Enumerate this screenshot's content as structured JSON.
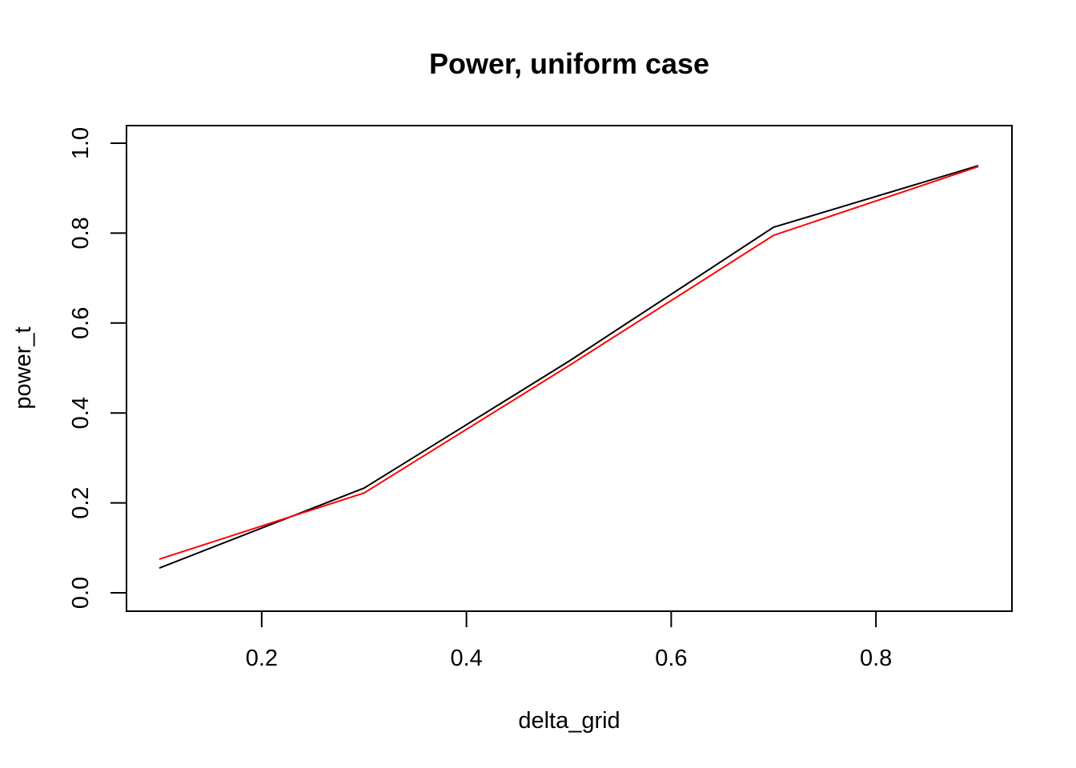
{
  "chart_data": {
    "type": "line",
    "title": "Power, uniform case",
    "xlabel": "delta_grid",
    "ylabel": "power_t",
    "x": [
      0.1,
      0.3,
      0.5,
      0.7,
      0.9
    ],
    "xlim": [
      0.1,
      0.9
    ],
    "ylim": [
      0.055,
      0.95
    ],
    "xticks": [
      0.2,
      0.4,
      0.6,
      0.8
    ],
    "xtick_labels": [
      "0.2",
      "0.4",
      "0.6",
      "0.8"
    ],
    "yticks": [
      0.0,
      0.2,
      0.4,
      0.6,
      0.8,
      1.0
    ],
    "ytick_labels": [
      "0.0",
      "0.2",
      "0.4",
      "0.6",
      "0.8",
      "1.0"
    ],
    "grid": false,
    "series": [
      {
        "color": "#000000",
        "values": [
          0.055,
          0.233,
          0.515,
          0.813,
          0.95
        ]
      },
      {
        "color": "#ff0000",
        "values": [
          0.075,
          0.222,
          0.505,
          0.795,
          0.948
        ]
      }
    ]
  }
}
